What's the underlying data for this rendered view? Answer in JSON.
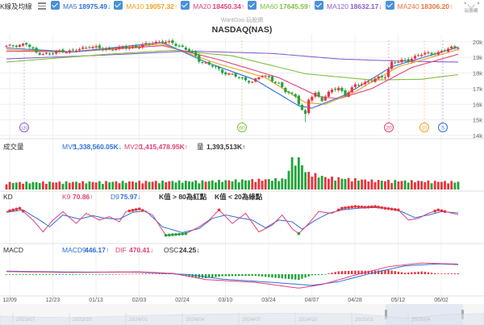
{
  "header": {
    "title": "K線及均線",
    "ma_items": [
      {
        "label": "MA5",
        "value": "18975.49↓",
        "color": "#2e6fd8",
        "checked": true
      },
      {
        "label": "MA10",
        "value": "19057.32↑",
        "color": "#f0a020",
        "checked": true
      },
      {
        "label": "MA20",
        "value": "18450.34↑",
        "color": "#e0407a",
        "checked": true
      },
      {
        "label": "MA60",
        "value": "17645.59↑",
        "color": "#7fbf3f",
        "checked": true
      },
      {
        "label": "MA120",
        "value": "18632.17↓",
        "color": "#8a5fd0",
        "checked": true
      },
      {
        "label": "MA240",
        "value": "18306.20↑",
        "color": "#e8733a",
        "checked": true
      }
    ],
    "logo_text": "玩股網"
  },
  "chart_title": "NASDAQ(NAS)",
  "watermark": "WantGoo 玩股網",
  "volume": {
    "label": "成交量",
    "mv5": "MV5",
    "mv5_value": "1,338,560.05K↓",
    "mv20": "MV20",
    "mv20_value": "1,415,478.95K↑",
    "qty": "量",
    "qty_value": "1,393,513K↑"
  },
  "kd": {
    "label": "KD",
    "k": "K9",
    "k_value": "70.86↑",
    "d": "D9",
    "d_value": "75.97↓",
    "note1": "K值 > 80為紅點",
    "note2": "K值 < 20為綠點"
  },
  "macd": {
    "label": "MACD",
    "macd": "MACD9",
    "macd_value": "446.17↑",
    "dif": "DIF",
    "dif_value": "470.41↓",
    "osc": "OSC",
    "osc_value": "24.25↓"
  },
  "x_axis": {
    "date_labels": [
      "12/09",
      "12/23",
      "01/13",
      "02/03",
      "02/24",
      "03/10",
      "03/24",
      "04/07",
      "04/28",
      "05/12",
      "06/02"
    ],
    "overview_labels": [
      "2023/07",
      "2023/10",
      "2024/01",
      "2024/04",
      "2024/07",
      "2024/10",
      "2025/01",
      "2025/04"
    ]
  },
  "markers": [
    "120",
    "60",
    "20",
    "10",
    "5"
  ],
  "colors": {
    "up": "#e8343c",
    "down": "#22a33a",
    "ma5": "#2e6fd8",
    "ma10": "#f0a020",
    "ma20": "#e0407a",
    "ma60": "#7fbf3f",
    "ma120": "#8a5fd0",
    "k": "#e0407a",
    "d": "#2e6fd8",
    "dif": "#e0407a",
    "macd": "#2e6fd8"
  },
  "chart_data": {
    "type": "candlestick",
    "title": "NASDAQ(NAS)",
    "y_ticks": [
      "20k",
      "19k",
      "18k",
      "17k",
      "16k",
      "15k",
      "14k"
    ],
    "ylim": [
      14000,
      20400
    ],
    "anchors_close": [
      [
        0,
        19700
      ],
      [
        6,
        19850
      ],
      [
        9,
        19300
      ],
      [
        13,
        19200
      ],
      [
        16,
        19400
      ],
      [
        20,
        19400
      ],
      [
        25,
        19700
      ],
      [
        30,
        19500
      ],
      [
        35,
        19600
      ],
      [
        40,
        19700
      ],
      [
        44,
        19950
      ],
      [
        47,
        20000
      ],
      [
        50,
        19900
      ],
      [
        53,
        19650
      ],
      [
        56,
        19300
      ],
      [
        58,
        18800
      ],
      [
        62,
        18450
      ],
      [
        65,
        18050
      ],
      [
        68,
        17900
      ],
      [
        71,
        17600
      ],
      [
        74,
        17450
      ],
      [
        77,
        17850
      ],
      [
        79,
        17700
      ],
      [
        82,
        17300
      ],
      [
        84,
        16800
      ],
      [
        87,
        16550
      ],
      [
        89,
        15600
      ],
      [
        90,
        15300
      ],
      [
        91,
        16300
      ],
      [
        93,
        16700
      ],
      [
        95,
        16300
      ],
      [
        98,
        16900
      ],
      [
        100,
        17050
      ],
      [
        102,
        16600
      ],
      [
        105,
        17200
      ],
      [
        108,
        17400
      ],
      [
        111,
        17600
      ],
      [
        114,
        17800
      ],
      [
        116,
        18700
      ],
      [
        118,
        18700
      ],
      [
        121,
        18850
      ],
      [
        124,
        19150
      ],
      [
        127,
        19250
      ],
      [
        130,
        19300
      ],
      [
        134,
        19600
      ],
      [
        136,
        19700
      ]
    ],
    "ma_anchors": {
      "ma5": [
        [
          0,
          19600
        ],
        [
          20,
          19350
        ],
        [
          47,
          19950
        ],
        [
          60,
          18700
        ],
        [
          75,
          17550
        ],
        [
          88,
          15900
        ],
        [
          92,
          15750
        ],
        [
          102,
          16600
        ],
        [
          116,
          18400
        ],
        [
          136,
          19650
        ]
      ],
      "ma10": [
        [
          0,
          19500
        ],
        [
          20,
          19350
        ],
        [
          47,
          19850
        ],
        [
          62,
          18700
        ],
        [
          78,
          17700
        ],
        [
          90,
          16100
        ],
        [
          96,
          16000
        ],
        [
          105,
          16800
        ],
        [
          118,
          18400
        ],
        [
          136,
          19500
        ]
      ],
      "ma20": [
        [
          0,
          19400
        ],
        [
          20,
          19350
        ],
        [
          47,
          19750
        ],
        [
          64,
          18850
        ],
        [
          82,
          17700
        ],
        [
          94,
          16500
        ],
        [
          100,
          16350
        ],
        [
          110,
          17000
        ],
        [
          122,
          18350
        ],
        [
          136,
          19200
        ]
      ],
      "ma60": [
        [
          0,
          18700
        ],
        [
          30,
          19200
        ],
        [
          50,
          19450
        ],
        [
          68,
          19100
        ],
        [
          90,
          17950
        ],
        [
          110,
          17550
        ],
        [
          125,
          17600
        ],
        [
          136,
          17900
        ]
      ],
      "ma120": [
        [
          0,
          18900
        ],
        [
          30,
          19150
        ],
        [
          55,
          19400
        ],
        [
          80,
          19250
        ],
        [
          100,
          18900
        ],
        [
          120,
          18750
        ],
        [
          136,
          18700
        ]
      ]
    },
    "volume_anchors": [
      [
        0,
        0.2
      ],
      [
        30,
        0.22
      ],
      [
        60,
        0.24
      ],
      [
        84,
        0.3
      ],
      [
        86,
        0.85
      ],
      [
        88,
        1.0
      ],
      [
        90,
        0.5
      ],
      [
        96,
        0.35
      ],
      [
        110,
        0.26
      ],
      [
        136,
        0.22
      ]
    ],
    "kd_anchors": {
      "k": [
        [
          0,
          80
        ],
        [
          4,
          90
        ],
        [
          8,
          55
        ],
        [
          11,
          20
        ],
        [
          14,
          55
        ],
        [
          17,
          80
        ],
        [
          21,
          45
        ],
        [
          24,
          75
        ],
        [
          28,
          55
        ],
        [
          31,
          65
        ],
        [
          34,
          50
        ],
        [
          36,
          80
        ],
        [
          40,
          88
        ],
        [
          44,
          70
        ],
        [
          48,
          10
        ],
        [
          54,
          15
        ],
        [
          58,
          35
        ],
        [
          61,
          55
        ],
        [
          64,
          85
        ],
        [
          68,
          45
        ],
        [
          72,
          75
        ],
        [
          76,
          20
        ],
        [
          80,
          40
        ],
        [
          83,
          70
        ],
        [
          86,
          30
        ],
        [
          88,
          15
        ],
        [
          91,
          45
        ],
        [
          94,
          80
        ],
        [
          98,
          75
        ],
        [
          101,
          90
        ],
        [
          105,
          95
        ],
        [
          108,
          93
        ],
        [
          111,
          95
        ],
        [
          114,
          90
        ],
        [
          118,
          85
        ],
        [
          121,
          55
        ],
        [
          124,
          60
        ],
        [
          127,
          75
        ],
        [
          130,
          85
        ],
        [
          133,
          78
        ],
        [
          136,
          71
        ]
      ],
      "d": [
        [
          0,
          78
        ],
        [
          5,
          85
        ],
        [
          10,
          55
        ],
        [
          13,
          35
        ],
        [
          17,
          70
        ],
        [
          22,
          58
        ],
        [
          26,
          68
        ],
        [
          30,
          60
        ],
        [
          34,
          58
        ],
        [
          38,
          78
        ],
        [
          42,
          82
        ],
        [
          47,
          35
        ],
        [
          53,
          18
        ],
        [
          58,
          30
        ],
        [
          62,
          60
        ],
        [
          66,
          70
        ],
        [
          70,
          62
        ],
        [
          74,
          55
        ],
        [
          78,
          32
        ],
        [
          82,
          55
        ],
        [
          86,
          50
        ],
        [
          89,
          28
        ],
        [
          93,
          55
        ],
        [
          97,
          75
        ],
        [
          101,
          85
        ],
        [
          106,
          90
        ],
        [
          110,
          92
        ],
        [
          115,
          90
        ],
        [
          119,
          80
        ],
        [
          123,
          62
        ],
        [
          127,
          70
        ],
        [
          131,
          80
        ],
        [
          136,
          76
        ]
      ]
    },
    "macd_anchors": {
      "dif": [
        [
          0,
          120
        ],
        [
          20,
          80
        ],
        [
          40,
          110
        ],
        [
          50,
          40
        ],
        [
          60,
          -250
        ],
        [
          75,
          -380
        ],
        [
          88,
          -650
        ],
        [
          95,
          -480
        ],
        [
          105,
          -40
        ],
        [
          115,
          350
        ],
        [
          125,
          520
        ],
        [
          136,
          470
        ]
      ],
      "macd": [
        [
          0,
          140
        ],
        [
          20,
          100
        ],
        [
          40,
          95
        ],
        [
          55,
          -20
        ],
        [
          65,
          -230
        ],
        [
          80,
          -380
        ],
        [
          92,
          -520
        ],
        [
          100,
          -350
        ],
        [
          110,
          50
        ],
        [
          120,
          390
        ],
        [
          130,
          480
        ],
        [
          136,
          446
        ]
      ]
    },
    "n_bars": 137
  }
}
